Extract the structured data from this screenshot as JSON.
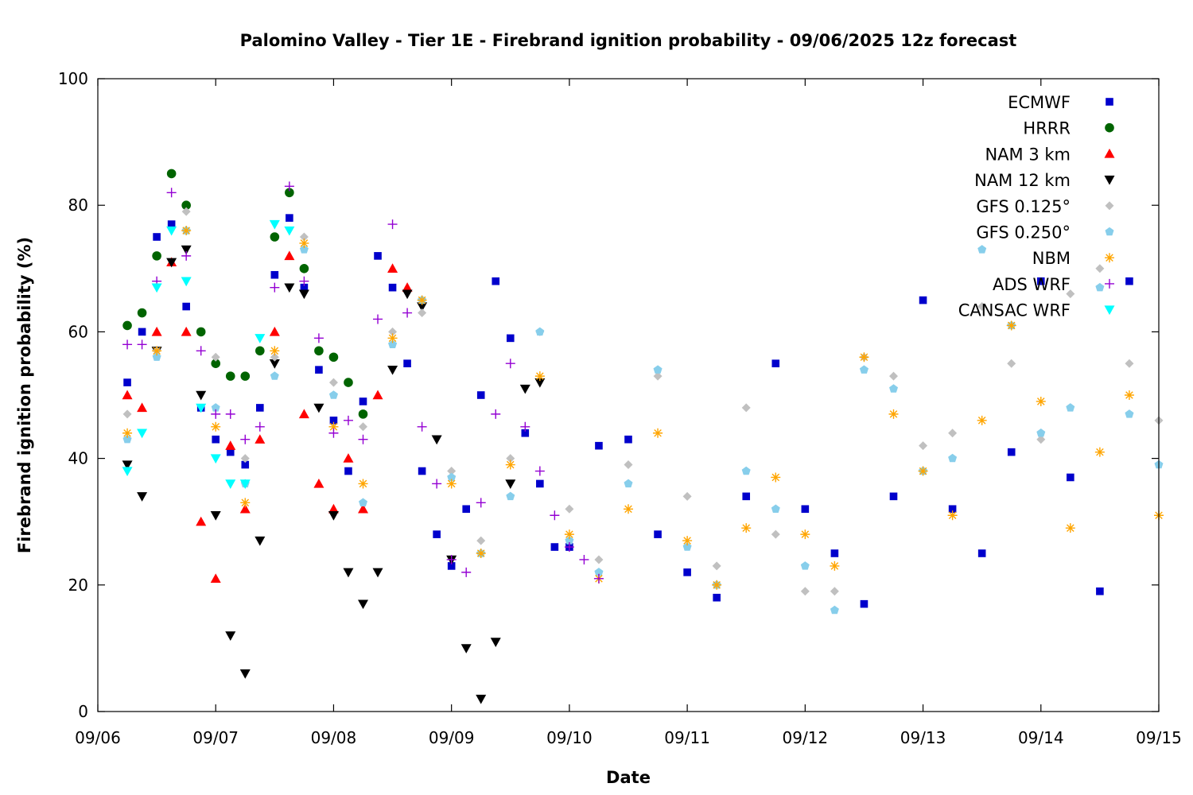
{
  "chart_data": {
    "type": "scatter",
    "title": "Palomino Valley - Tier 1E - Firebrand ignition probability - 09/06/2025 12z forecast",
    "xlabel": "Date",
    "ylabel": "Firebrand ignition probability (%)",
    "xlim": [
      "09/06",
      "09/15"
    ],
    "ylim": [
      0,
      100
    ],
    "x_ticks": [
      "09/06",
      "09/07",
      "09/08",
      "09/09",
      "09/10",
      "09/11",
      "09/12",
      "09/13",
      "09/14",
      "09/15"
    ],
    "y_ticks": [
      "0",
      "20",
      "40",
      "60",
      "80",
      "100"
    ],
    "grid": false,
    "legend_position": "top-right",
    "series": [
      {
        "name": "ECMWF",
        "marker": "square",
        "color": "#0000cc",
        "x": [
          "09/06 06z",
          "09/06 09z",
          "09/06 12z",
          "09/06 15z",
          "09/06 18z",
          "09/06 21z",
          "09/07 00z",
          "09/07 03z",
          "09/07 06z",
          "09/07 09z",
          "09/07 12z",
          "09/07 15z",
          "09/07 18z",
          "09/07 21z",
          "09/08 00z",
          "09/08 03z",
          "09/08 06z",
          "09/08 09z",
          "09/08 12z",
          "09/08 15z",
          "09/08 18z",
          "09/08 21z",
          "09/09 00z",
          "09/09 03z",
          "09/09 06z",
          "09/09 09z",
          "09/09 12z",
          "09/09 15z",
          "09/09 18z",
          "09/09 21z",
          "09/10 00z",
          "09/10 06z",
          "09/10 12z",
          "09/10 18z",
          "09/11 00z",
          "09/11 06z",
          "09/11 12z",
          "09/11 18z",
          "09/12 00z",
          "09/12 06z",
          "09/12 12z",
          "09/12 18z",
          "09/13 00z",
          "09/13 06z",
          "09/13 12z",
          "09/13 18z",
          "09/14 00z",
          "09/14 06z",
          "09/14 12z",
          "09/14 18z"
        ],
        "values": [
          52,
          60,
          75,
          77,
          64,
          48,
          43,
          41,
          39,
          48,
          69,
          78,
          67,
          54,
          46,
          38,
          49,
          72,
          67,
          55,
          38,
          28,
          23,
          32,
          50,
          68,
          59,
          44,
          36,
          26,
          26,
          42,
          43,
          28,
          22,
          18,
          34,
          55,
          32,
          25,
          17,
          34,
          65,
          32,
          25,
          41,
          68,
          37,
          19,
          68
        ]
      },
      {
        "name": "HRRR",
        "marker": "circle",
        "color": "#006400",
        "x": [
          "09/06 06z",
          "09/06 09z",
          "09/06 12z",
          "09/06 15z",
          "09/06 18z",
          "09/06 21z",
          "09/07 00z",
          "09/07 03z",
          "09/07 06z",
          "09/07 09z",
          "09/07 12z",
          "09/07 15z",
          "09/07 18z",
          "09/07 21z",
          "09/08 00z",
          "09/08 03z",
          "09/08 06z"
        ],
        "values": [
          61,
          63,
          72,
          85,
          80,
          60,
          55,
          53,
          53,
          57,
          75,
          82,
          70,
          57,
          56,
          52,
          47
        ]
      },
      {
        "name": "NAM 3 km",
        "marker": "triangle-up",
        "color": "#ff0000",
        "x": [
          "09/06 06z",
          "09/06 09z",
          "09/06 12z",
          "09/06 15z",
          "09/06 18z",
          "09/06 21z",
          "09/07 00z",
          "09/07 03z",
          "09/07 06z",
          "09/07 09z",
          "09/07 12z",
          "09/07 15z",
          "09/07 18z",
          "09/07 21z",
          "09/08 00z",
          "09/08 03z",
          "09/08 06z",
          "09/08 09z",
          "09/08 12z",
          "09/08 15z"
        ],
        "values": [
          50,
          48,
          60,
          71,
          60,
          30,
          21,
          42,
          32,
          43,
          60,
          72,
          47,
          36,
          32,
          40,
          32,
          50,
          70,
          67
        ]
      },
      {
        "name": "NAM 12 km",
        "marker": "triangle-down",
        "color": "#000000",
        "x": [
          "09/06 06z",
          "09/06 09z",
          "09/06 12z",
          "09/06 15z",
          "09/06 18z",
          "09/06 21z",
          "09/07 00z",
          "09/07 03z",
          "09/07 06z",
          "09/07 09z",
          "09/07 12z",
          "09/07 15z",
          "09/07 18z",
          "09/07 21z",
          "09/08 00z",
          "09/08 03z",
          "09/08 06z",
          "09/08 09z",
          "09/08 12z",
          "09/08 15z",
          "09/08 18z",
          "09/08 21z",
          "09/09 00z",
          "09/09 03z",
          "09/09 06z",
          "09/09 09z",
          "09/09 12z",
          "09/09 15z",
          "09/09 18z"
        ],
        "values": [
          39,
          34,
          57,
          71,
          73,
          50,
          31,
          12,
          6,
          27,
          55,
          67,
          66,
          48,
          31,
          22,
          17,
          22,
          54,
          66,
          64,
          43,
          24,
          10,
          2,
          11,
          36,
          51,
          52
        ]
      },
      {
        "name": "GFS 0.125°",
        "marker": "diamond",
        "color": "#c0c0c0",
        "x": [
          "09/06 06z",
          "09/06 12z",
          "09/06 18z",
          "09/07 00z",
          "09/07 06z",
          "09/07 12z",
          "09/07 18z",
          "09/08 00z",
          "09/08 06z",
          "09/08 12z",
          "09/08 18z",
          "09/09 00z",
          "09/09 06z",
          "09/09 12z",
          "09/09 18z",
          "09/10 00z",
          "09/10 06z",
          "09/10 12z",
          "09/10 18z",
          "09/11 00z",
          "09/11 06z",
          "09/11 12z",
          "09/11 18z",
          "09/12 00z",
          "09/12 06z",
          "09/12 12z",
          "09/12 18z",
          "09/13 00z",
          "09/13 06z",
          "09/13 12z",
          "09/13 18z",
          "09/14 00z",
          "09/14 06z",
          "09/14 12z",
          "09/14 18z",
          "09/15 00z"
        ],
        "values": [
          47,
          57,
          79,
          56,
          40,
          56,
          75,
          52,
          45,
          60,
          63,
          38,
          27,
          40,
          60,
          32,
          24,
          39,
          53,
          34,
          23,
          48,
          28,
          19,
          19,
          56,
          53,
          42,
          44,
          64,
          55,
          43,
          66,
          70,
          55,
          46
        ]
      },
      {
        "name": "GFS 0.250°",
        "marker": "pentagon",
        "color": "#87ceeb",
        "x": [
          "09/06 06z",
          "09/06 12z",
          "09/06 18z",
          "09/07 00z",
          "09/07 06z",
          "09/07 12z",
          "09/07 18z",
          "09/08 00z",
          "09/08 06z",
          "09/08 12z",
          "09/08 18z",
          "09/09 00z",
          "09/09 06z",
          "09/09 12z",
          "09/09 18z",
          "09/10 00z",
          "09/10 06z",
          "09/10 12z",
          "09/10 18z",
          "09/11 00z",
          "09/11 06z",
          "09/11 12z",
          "09/11 18z",
          "09/12 00z",
          "09/12 06z",
          "09/12 12z",
          "09/12 18z",
          "09/13 00z",
          "09/13 06z",
          "09/13 12z",
          "09/13 18z",
          "09/14 00z",
          "09/14 06z",
          "09/14 12z",
          "09/14 18z",
          "09/15 00z"
        ],
        "values": [
          43,
          56,
          76,
          48,
          36,
          53,
          73,
          50,
          33,
          58,
          65,
          37,
          25,
          34,
          60,
          27,
          22,
          36,
          54,
          26,
          20,
          38,
          32,
          23,
          16,
          54,
          51,
          38,
          40,
          73,
          61,
          44,
          48,
          67,
          47,
          39
        ]
      },
      {
        "name": "NBM",
        "marker": "asterisk",
        "color": "#ffa500",
        "x": [
          "09/06 06z",
          "09/06 12z",
          "09/06 18z",
          "09/07 00z",
          "09/07 06z",
          "09/07 12z",
          "09/07 18z",
          "09/08 00z",
          "09/08 06z",
          "09/08 12z",
          "09/08 18z",
          "09/09 00z",
          "09/09 06z",
          "09/09 12z",
          "09/09 18z",
          "09/10 00z",
          "09/10 06z",
          "09/10 12z",
          "09/10 18z",
          "09/11 00z",
          "09/11 06z",
          "09/11 12z",
          "09/11 18z",
          "09/12 00z",
          "09/12 06z",
          "09/12 12z",
          "09/12 18z",
          "09/13 00z",
          "09/13 06z",
          "09/13 12z",
          "09/13 18z",
          "09/14 00z",
          "09/14 06z",
          "09/14 12z",
          "09/14 18z",
          "09/15 00z"
        ],
        "values": [
          44,
          57,
          76,
          45,
          33,
          57,
          74,
          45,
          36,
          59,
          65,
          36,
          25,
          39,
          53,
          28,
          21,
          32,
          44,
          27,
          20,
          29,
          37,
          28,
          23,
          56,
          47,
          38,
          31,
          46,
          61,
          49,
          29,
          41,
          50,
          31
        ]
      },
      {
        "name": "ADS WRF",
        "marker": "plus",
        "color": "#9400d3",
        "x": [
          "09/06 06z",
          "09/06 09z",
          "09/06 12z",
          "09/06 15z",
          "09/06 18z",
          "09/06 21z",
          "09/07 00z",
          "09/07 03z",
          "09/07 06z",
          "09/07 09z",
          "09/07 12z",
          "09/07 15z",
          "09/07 18z",
          "09/07 21z",
          "09/08 00z",
          "09/08 03z",
          "09/08 06z",
          "09/08 09z",
          "09/08 12z",
          "09/08 15z",
          "09/08 18z",
          "09/08 21z",
          "09/09 00z",
          "09/09 03z",
          "09/09 06z",
          "09/09 09z",
          "09/09 12z",
          "09/09 15z",
          "09/09 18z",
          "09/09 21z",
          "09/10 00z",
          "09/10 03z",
          "09/10 06z"
        ],
        "values": [
          58,
          58,
          68,
          82,
          72,
          57,
          47,
          47,
          43,
          45,
          67,
          83,
          68,
          59,
          44,
          46,
          43,
          62,
          77,
          63,
          45,
          36,
          24,
          22,
          33,
          47,
          55,
          45,
          38,
          31,
          26,
          24,
          21
        ]
      },
      {
        "name": "CANSAC WRF",
        "marker": "triangle-down",
        "color": "#00ffff",
        "x": [
          "09/06 06z",
          "09/06 09z",
          "09/06 12z",
          "09/06 15z",
          "09/06 18z",
          "09/06 21z",
          "09/07 00z",
          "09/07 03z",
          "09/07 06z",
          "09/07 09z",
          "09/07 12z",
          "09/07 15z"
        ],
        "values": [
          38,
          44,
          67,
          76,
          68,
          48,
          40,
          36,
          36,
          59,
          77,
          76
        ]
      }
    ]
  }
}
